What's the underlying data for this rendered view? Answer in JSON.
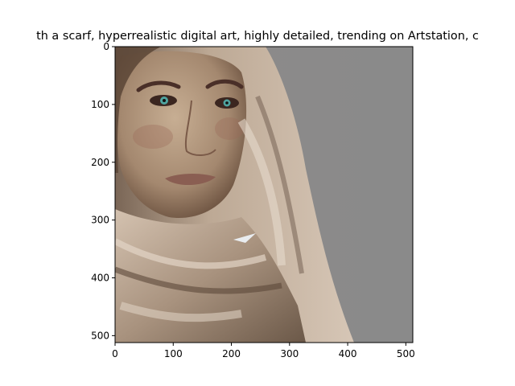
{
  "figure": {
    "title": "th a scarf,  hyperrealistic  digital art, highly detailed, trending on Artstation, c",
    "image_description": "digital portrait: woman with freckles and green eyes wrapped in a beige knit scarf, gray background",
    "colors": {
      "background": "#8a8a8a",
      "scarf_light": "#c9b6a3",
      "scarf_dark": "#6b5848",
      "skin": "#b79f86",
      "skin_shadow": "#6a5040",
      "eye": "#4fa4a0"
    },
    "x_axis": {
      "ticks": [
        "0",
        "100",
        "200",
        "300",
        "400",
        "500"
      ],
      "range": [
        0,
        512
      ]
    },
    "y_axis": {
      "ticks": [
        "0",
        "100",
        "200",
        "300",
        "400",
        "500"
      ],
      "range": [
        0,
        512
      ],
      "inverted": true
    }
  }
}
